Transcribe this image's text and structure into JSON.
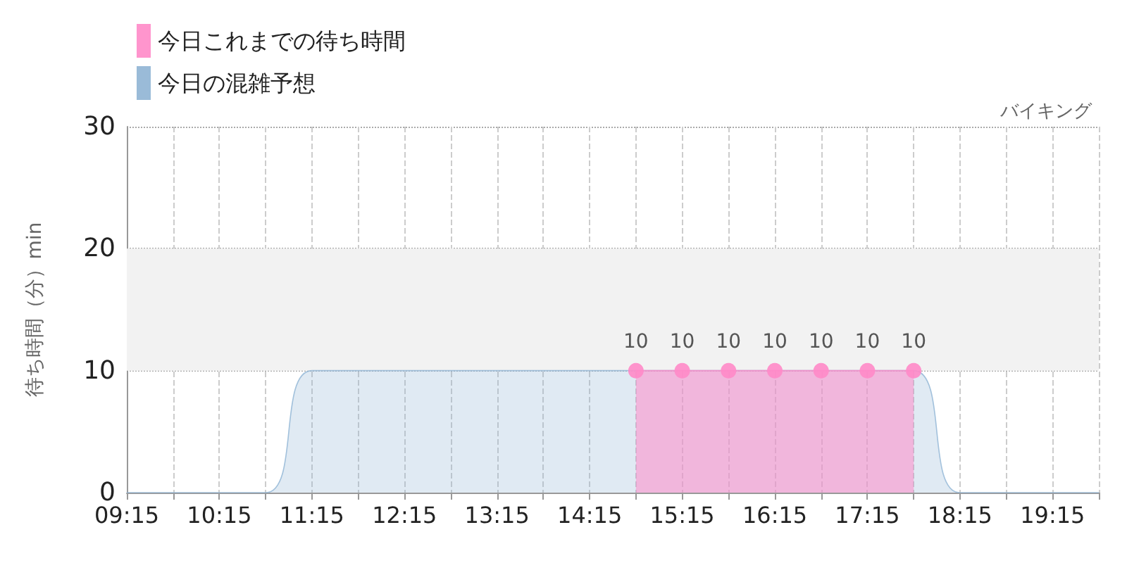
{
  "chart_data": {
    "type": "area",
    "title": "バイキング",
    "ylabel": "待ち時間（分）min",
    "xlim": [
      9.25,
      19.75
    ],
    "xticks": [
      {
        "value": 9.25,
        "label": "09:15"
      },
      {
        "value": 9.75,
        "label": null
      },
      {
        "value": 10.25,
        "label": "10:15"
      },
      {
        "value": 10.75,
        "label": null
      },
      {
        "value": 11.25,
        "label": "11:15"
      },
      {
        "value": 11.75,
        "label": null
      },
      {
        "value": 12.25,
        "label": "12:15"
      },
      {
        "value": 12.75,
        "label": null
      },
      {
        "value": 13.25,
        "label": "13:15"
      },
      {
        "value": 13.75,
        "label": null
      },
      {
        "value": 14.25,
        "label": "14:15"
      },
      {
        "value": 14.75,
        "label": null
      },
      {
        "value": 15.25,
        "label": "15:15"
      },
      {
        "value": 15.75,
        "label": null
      },
      {
        "value": 16.25,
        "label": "16:15"
      },
      {
        "value": 16.75,
        "label": null
      },
      {
        "value": 17.25,
        "label": "17:15"
      },
      {
        "value": 17.75,
        "label": null
      },
      {
        "value": 18.25,
        "label": "18:15"
      },
      {
        "value": 18.75,
        "label": null
      },
      {
        "value": 19.25,
        "label": "19:15"
      },
      {
        "value": 19.75,
        "label": null
      }
    ],
    "ylim": [
      0,
      30
    ],
    "yticks": [
      0,
      10,
      20,
      30
    ],
    "grid": true,
    "legend": "top left",
    "bands": [
      {
        "axis": "y",
        "from": 10,
        "to": 20,
        "color": "#f2f2f2"
      }
    ],
    "series": [
      {
        "name": "今日これまでの待ち時間",
        "color": "#ff8ac8",
        "marker": "circle",
        "x": [
          14.75,
          15.25,
          15.75,
          16.25,
          16.75,
          17.25,
          17.75
        ],
        "values": [
          10,
          10,
          10,
          10,
          10,
          10,
          10
        ],
        "value_labels": [
          "10",
          "10",
          "10",
          "10",
          "10",
          "10",
          "10"
        ]
      },
      {
        "name": "今日の混雑予想",
        "color": "#8fb4d4",
        "marker": "none",
        "x": [
          9.25,
          9.75,
          10.25,
          10.75,
          11.25,
          11.75,
          12.25,
          12.75,
          13.25,
          13.75,
          14.25,
          14.75,
          15.25,
          15.75,
          16.25,
          16.75,
          17.25,
          17.75,
          18.25,
          18.75,
          19.25,
          19.75
        ],
        "values": [
          0,
          0,
          0,
          0,
          10,
          10,
          10,
          10,
          10,
          10,
          10,
          10,
          10,
          10,
          10,
          10,
          10,
          10,
          0,
          0,
          0,
          0
        ]
      }
    ]
  }
}
